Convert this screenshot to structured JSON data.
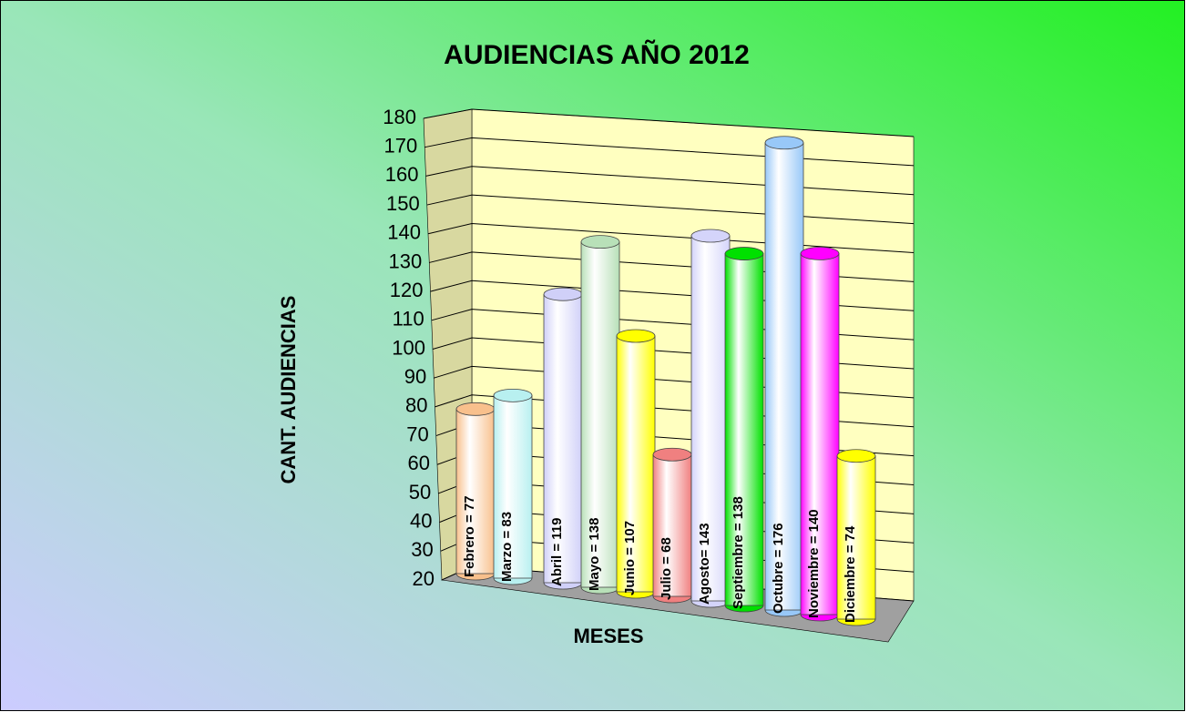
{
  "chart_data": {
    "type": "bar",
    "title": "AUDIENCIAS AÑO 2012",
    "x_label": "MESES",
    "y_label": "CANT. AUDIENCIAS",
    "values": [
      77,
      83,
      119,
      138,
      107,
      68,
      143,
      138,
      176,
      140,
      74
    ],
    "value_labels": [
      "Febrero = 77",
      "Marzo = 83",
      "Abril = 119",
      "Mayo = 138",
      "Junio = 107",
      "Julio = 68",
      "Agosto= 143",
      "Septiembre = 138",
      "Octubre = 176",
      "Noviembre = 140",
      "Diciembre = 74"
    ],
    "colors": [
      "#f8c08c",
      "#b8f0f0",
      "#d0d0f8",
      "#b8e0b8",
      "#ffff00",
      "#f08080",
      "#d4d4fa",
      "#00e000",
      "#98c8f8",
      "#ff00ff",
      "#ffff00"
    ],
    "ylim": [
      20,
      180
    ],
    "yticks": [
      20,
      30,
      40,
      50,
      60,
      70,
      80,
      90,
      100,
      110,
      120,
      130,
      140,
      150,
      160,
      170,
      180
    ],
    "grid": true
  }
}
